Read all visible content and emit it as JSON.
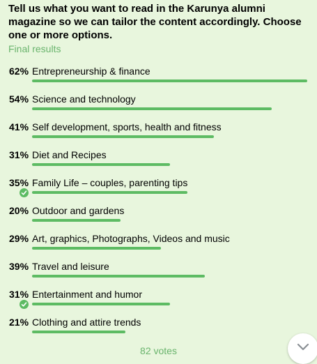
{
  "poll": {
    "question": "Tell us what you want to read in the Karunya alumni magazine so we can tailor the content accordingly. Choose one or more options.",
    "status": "Final results",
    "votes": "82 votes",
    "bar_color": "#5dbb63",
    "options": [
      {
        "percent_label": "62%",
        "percent": 62,
        "label": "Entrepreneurship & finance",
        "chosen": false
      },
      {
        "percent_label": "54%",
        "percent": 54,
        "label": "Science and technology",
        "chosen": false
      },
      {
        "percent_label": "41%",
        "percent": 41,
        "label": "Self development, sports, health and fitness",
        "chosen": false
      },
      {
        "percent_label": "31%",
        "percent": 31,
        "label": "Diet and Recipes",
        "chosen": false
      },
      {
        "percent_label": "35%",
        "percent": 35,
        "label": "Family Life – couples, parenting tips",
        "chosen": true
      },
      {
        "percent_label": "20%",
        "percent": 20,
        "label": "Outdoor and gardens",
        "chosen": false
      },
      {
        "percent_label": "29%",
        "percent": 29,
        "label": "Art, graphics, Photographs, Videos and music",
        "chosen": false
      },
      {
        "percent_label": "39%",
        "percent": 39,
        "label": "Travel and leisure",
        "chosen": false
      },
      {
        "percent_label": "31%",
        "percent": 31,
        "label": "Entertainment and humor",
        "chosen": true
      },
      {
        "percent_label": "21%",
        "percent": 21,
        "label": "Clothing and attire trends",
        "chosen": false
      }
    ]
  },
  "scroll_button": {
    "icon": "chevron-down-icon"
  }
}
